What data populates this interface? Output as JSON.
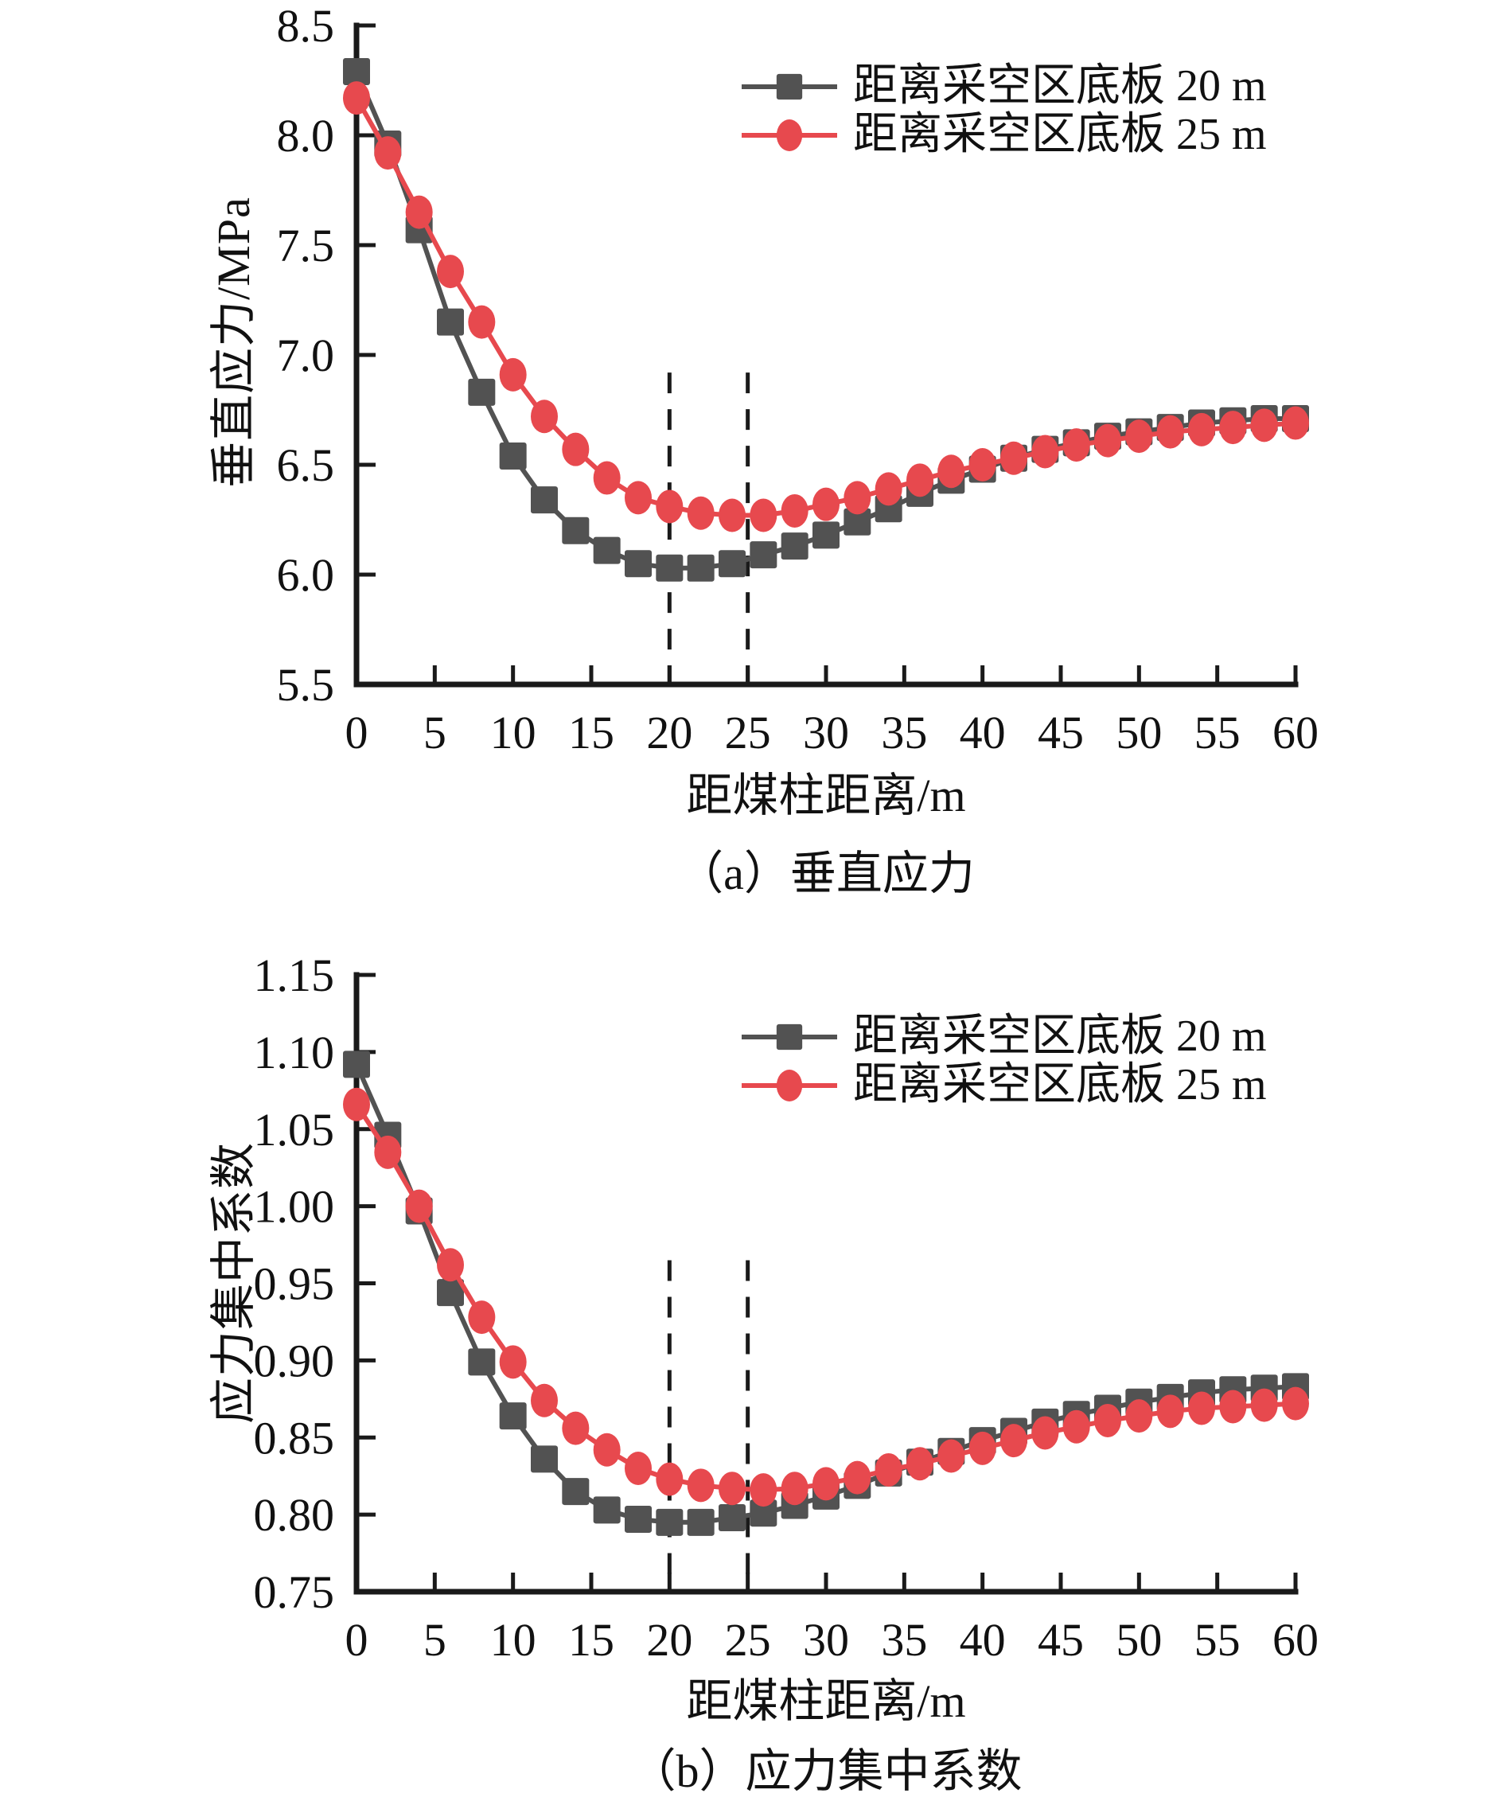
{
  "colors": {
    "series_20m": "#525252",
    "series_25m": "#e7494e",
    "axis": "#1a1a1a",
    "guide": "#1a1a1a",
    "text": "#111111",
    "background": "#ffffff"
  },
  "chart_data": [
    {
      "id": "chart-a",
      "type": "line",
      "caption": "（a）垂直应力",
      "xlabel": "距煤柱距离/m",
      "ylabel": "垂直应力/MPa",
      "xlim": [
        0,
        60
      ],
      "xtick_step": 5,
      "xtick_decimals": 0,
      "ylim": [
        5.5,
        8.5
      ],
      "ytick_step": 0.5,
      "ytick_decimals": 1,
      "grid": false,
      "legend_position": "inside-top-right",
      "guide_lines": {
        "style": "dashed",
        "x_values": [
          20,
          25
        ],
        "top_y": 6.92
      },
      "x": [
        0,
        2,
        4,
        6,
        8,
        10,
        12,
        14,
        16,
        18,
        20,
        22,
        24,
        26,
        28,
        30,
        32,
        34,
        36,
        38,
        40,
        42,
        44,
        46,
        48,
        50,
        52,
        54,
        56,
        58,
        60
      ],
      "series": [
        {
          "name": "距离采空区底板 20 m",
          "marker": "square",
          "color": "#525252",
          "values": [
            8.29,
            7.96,
            7.57,
            7.15,
            6.83,
            6.54,
            6.34,
            6.2,
            6.11,
            6.05,
            6.03,
            6.03,
            6.05,
            6.09,
            6.13,
            6.18,
            6.24,
            6.3,
            6.37,
            6.43,
            6.48,
            6.53,
            6.57,
            6.6,
            6.63,
            6.65,
            6.67,
            6.69,
            6.7,
            6.71,
            6.71
          ]
        },
        {
          "name": "距离采空区底板 25 m",
          "marker": "circle",
          "color": "#e7494e",
          "values": [
            8.17,
            7.92,
            7.65,
            7.38,
            7.15,
            6.91,
            6.72,
            6.57,
            6.44,
            6.35,
            6.31,
            6.28,
            6.27,
            6.27,
            6.29,
            6.32,
            6.35,
            6.39,
            6.43,
            6.47,
            6.5,
            6.53,
            6.56,
            6.59,
            6.61,
            6.63,
            6.65,
            6.66,
            6.67,
            6.68,
            6.69
          ]
        }
      ]
    },
    {
      "id": "chart-b",
      "type": "line",
      "caption": "（b）应力集中系数",
      "xlabel": "距煤柱距离/m",
      "ylabel": "应力集中系数",
      "xlim": [
        0,
        60
      ],
      "xtick_step": 5,
      "xtick_decimals": 0,
      "ylim": [
        0.75,
        1.15
      ],
      "ytick_step": 0.05,
      "ytick_decimals": 2,
      "grid": false,
      "legend_position": "inside-top-right",
      "guide_lines": {
        "style": "dashed",
        "x_values": [
          20,
          25
        ],
        "top_y": 0.965
      },
      "x": [
        0,
        2,
        4,
        6,
        8,
        10,
        12,
        14,
        16,
        18,
        20,
        22,
        24,
        26,
        28,
        30,
        32,
        34,
        36,
        38,
        40,
        42,
        44,
        46,
        48,
        50,
        52,
        54,
        56,
        58,
        60
      ],
      "series": [
        {
          "name": "距离采空区底板 20 m",
          "marker": "square",
          "color": "#525252",
          "values": [
            1.092,
            1.046,
            0.997,
            0.944,
            0.899,
            0.864,
            0.836,
            0.815,
            0.803,
            0.797,
            0.795,
            0.795,
            0.798,
            0.801,
            0.806,
            0.812,
            0.819,
            0.827,
            0.834,
            0.841,
            0.848,
            0.854,
            0.86,
            0.865,
            0.869,
            0.873,
            0.876,
            0.879,
            0.881,
            0.882,
            0.883
          ]
        },
        {
          "name": "距离采空区底板 25 m",
          "marker": "circle",
          "color": "#e7494e",
          "values": [
            1.066,
            1.035,
            1.0,
            0.962,
            0.928,
            0.899,
            0.874,
            0.856,
            0.842,
            0.83,
            0.823,
            0.819,
            0.817,
            0.816,
            0.817,
            0.82,
            0.824,
            0.829,
            0.833,
            0.838,
            0.843,
            0.848,
            0.853,
            0.857,
            0.861,
            0.864,
            0.867,
            0.869,
            0.87,
            0.871,
            0.872
          ]
        }
      ]
    }
  ]
}
